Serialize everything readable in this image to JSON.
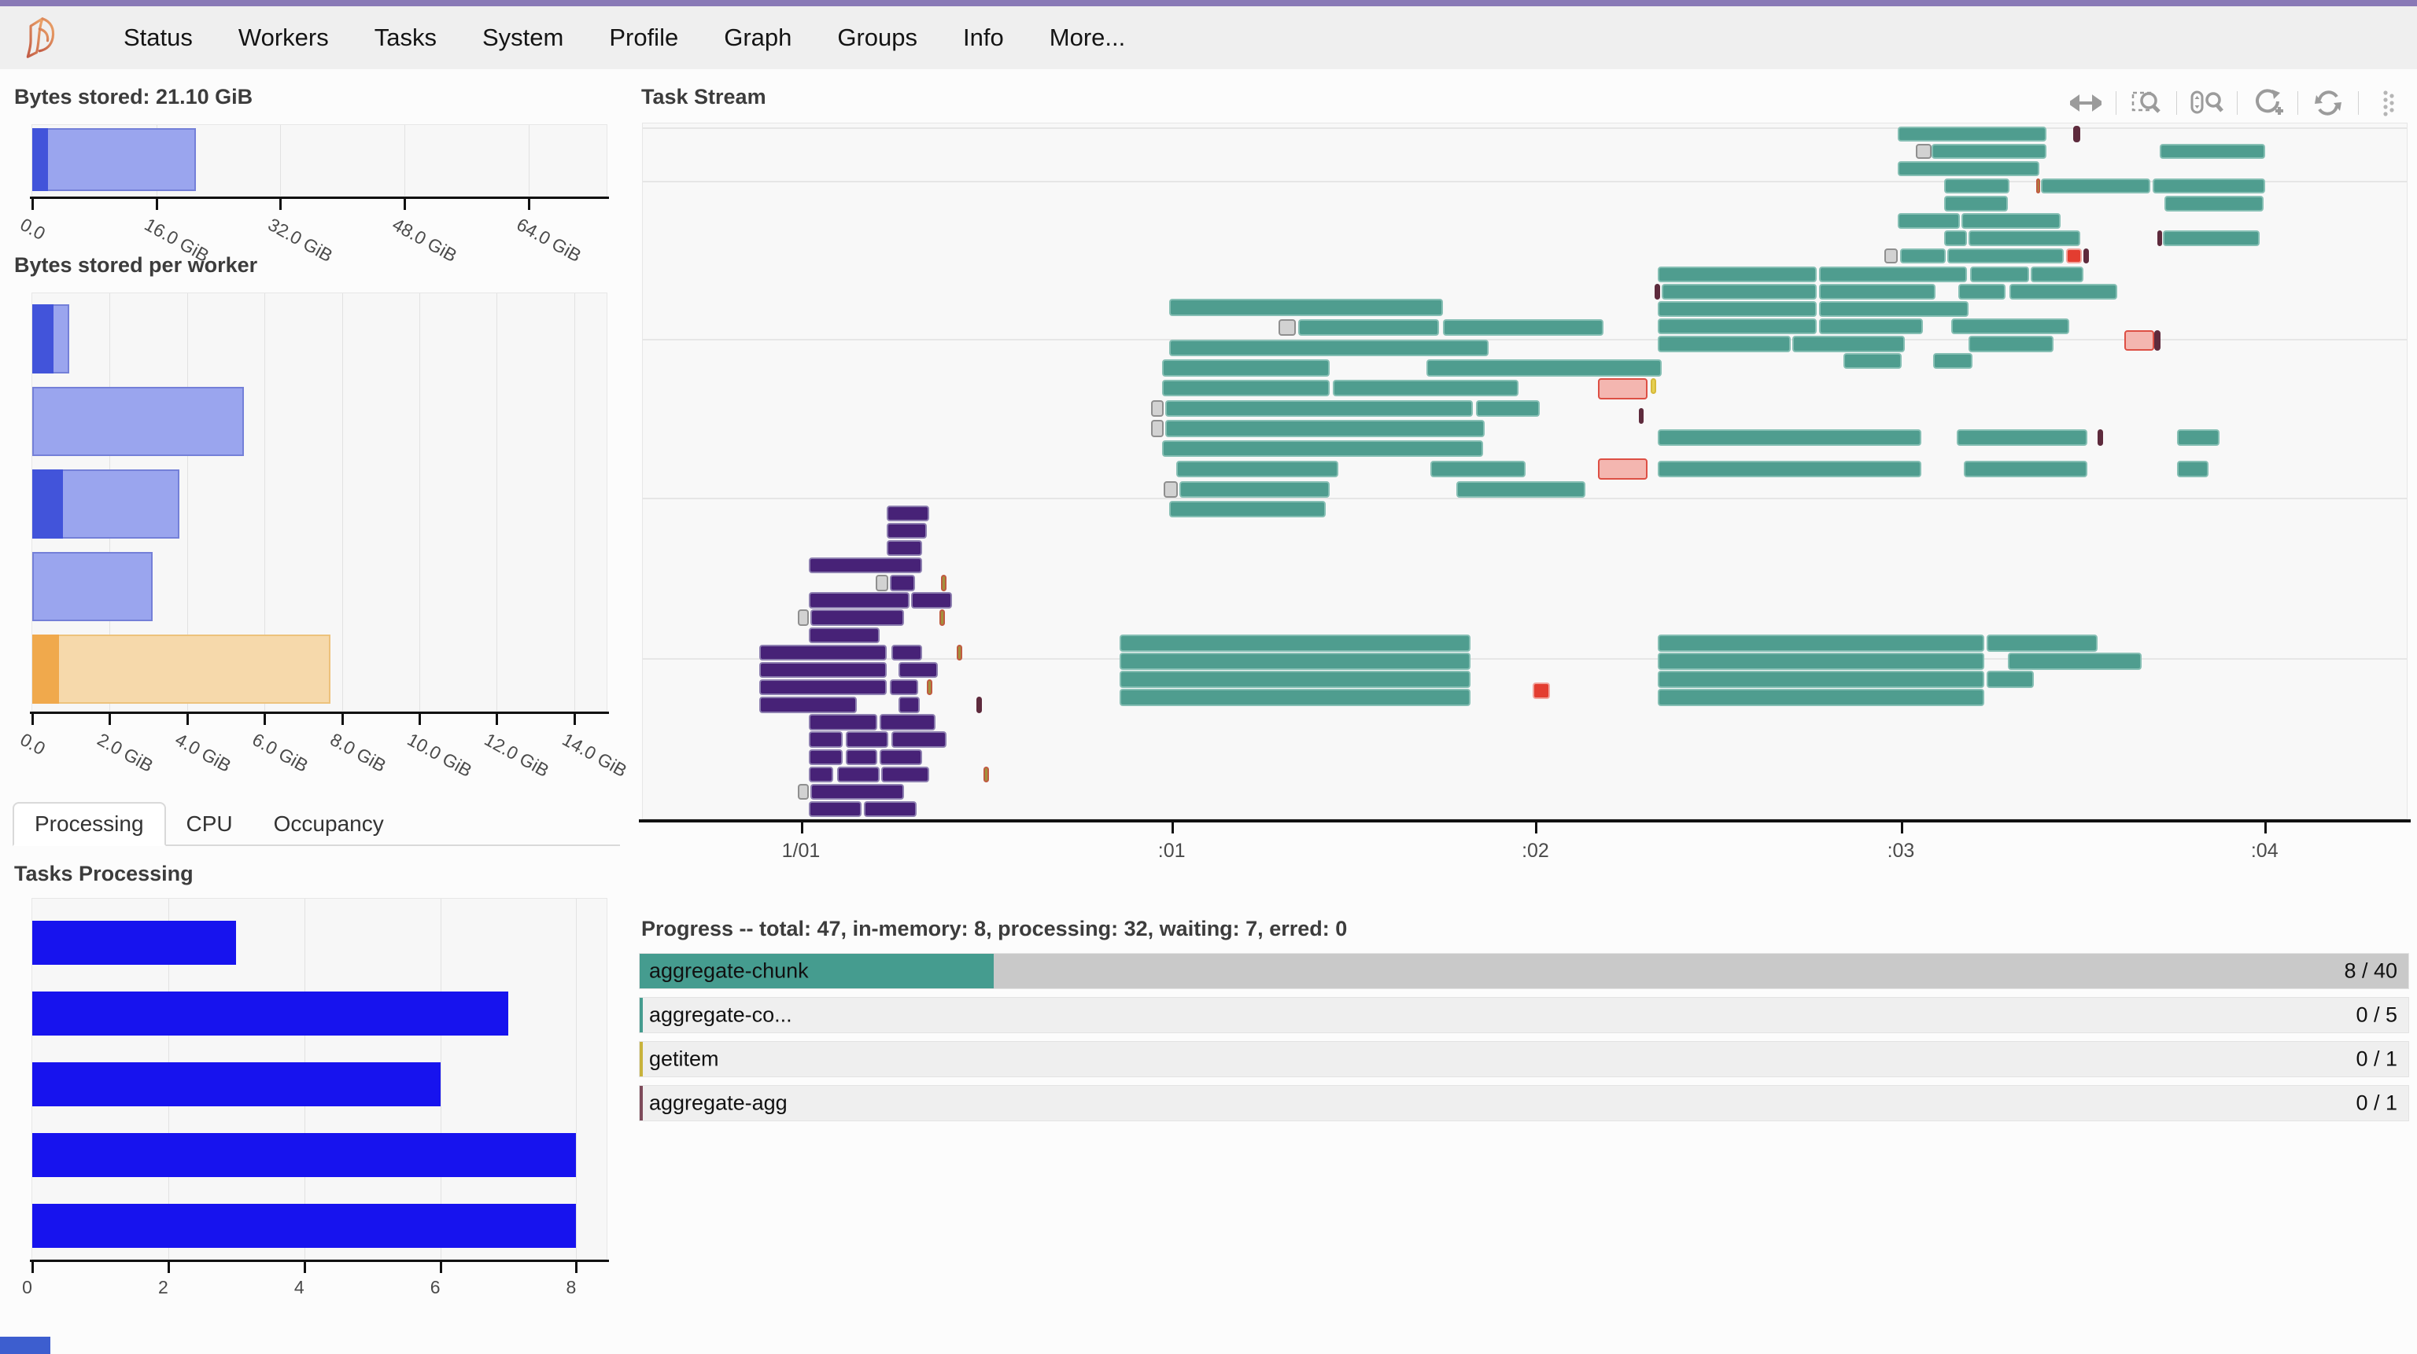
{
  "nav": {
    "logo": "dask-logo",
    "items": [
      "Status",
      "Workers",
      "Tasks",
      "System",
      "Profile",
      "Graph",
      "Groups",
      "Info",
      "More..."
    ]
  },
  "tabs": [
    "Processing",
    "CPU",
    "Occupancy"
  ],
  "toolbar": {
    "icons": [
      {
        "name": "pan-icon",
        "active": true
      },
      {
        "name": "box-zoom-icon",
        "active": false
      },
      {
        "name": "wheel-zoom-icon",
        "active": false
      },
      {
        "name": "zoom-in-icon",
        "active": true
      },
      {
        "name": "reset-icon",
        "active": false
      },
      {
        "name": "bokeh-logo-icon",
        "active": false
      }
    ]
  },
  "colors": {
    "accent_teal": "#459c8f",
    "blue_dark": "#4254da",
    "blue_light": "#9aa5ee",
    "blue_border": "#7480d8",
    "orange_dark": "#f0a94c",
    "orange_light": "#f6d9ab",
    "orange_border": "#edc27c",
    "task_blue": "#1713ee",
    "ts": {
      "t": {
        "f": "#4f9d8f",
        "b": "#86bfb4"
      },
      "p": {
        "f": "#472277",
        "b": "#8d7fb0"
      },
      "g": {
        "f": "#d2d2d2",
        "b": "#8f8f8f"
      },
      "r": {
        "f": "#e33d30",
        "b": "#f1a49d"
      },
      "k": {
        "f": "#f4b6b0",
        "b": "#dd4f44"
      },
      "o": {
        "f": "#a3913b",
        "b": "#c05a41"
      },
      "m": {
        "f": "#5e2b3d",
        "b": "#5e2b3d"
      },
      "y": {
        "f": "#e6d051",
        "b": "#d6b93c"
      }
    }
  },
  "chart_data": [
    {
      "type": "bar",
      "title": "Bytes stored: 21.10 GiB",
      "xlabel": "",
      "ylabel": "",
      "xlim": [
        0,
        74.3
      ],
      "ticks": [
        {
          "v": 0,
          "label": "0.0"
        },
        {
          "v": 16,
          "label": "16.0 GiB"
        },
        {
          "v": 32,
          "label": "32.0 GiB"
        },
        {
          "v": 48,
          "label": "48.0 GiB"
        },
        {
          "v": 64,
          "label": "64.0 GiB"
        }
      ],
      "total_gib": 21.1,
      "managed_gib": 2.0
    },
    {
      "type": "bar",
      "title": "Bytes stored per worker",
      "xlim": [
        0,
        14.88
      ],
      "ticks": [
        {
          "v": 0,
          "label": "0.0"
        },
        {
          "v": 2,
          "label": "2.0 GiB"
        },
        {
          "v": 4,
          "label": "4.0 GiB"
        },
        {
          "v": 6,
          "label": "6.0 GiB"
        },
        {
          "v": 8,
          "label": "8.0 GiB"
        },
        {
          "v": 10,
          "label": "10.0 GiB"
        },
        {
          "v": 12,
          "label": "12.0 GiB"
        },
        {
          "v": 14,
          "label": "14.0 GiB"
        }
      ],
      "workers": [
        {
          "dark": 0.55,
          "total": 0.96,
          "scheme": "blue"
        },
        {
          "dark": 0.0,
          "total": 5.47,
          "scheme": "blue"
        },
        {
          "dark": 0.8,
          "total": 3.8,
          "scheme": "blue"
        },
        {
          "dark": 0.0,
          "total": 3.1,
          "scheme": "blue"
        },
        {
          "dark": 0.7,
          "total": 7.7,
          "scheme": "orange"
        }
      ]
    },
    {
      "type": "bar",
      "title": "Tasks Processing",
      "xlim": [
        0,
        8.47
      ],
      "ticks": [
        {
          "v": 0,
          "label": "0"
        },
        {
          "v": 2,
          "label": "2"
        },
        {
          "v": 4,
          "label": "4"
        },
        {
          "v": 6,
          "label": "6"
        },
        {
          "v": 8,
          "label": "8"
        }
      ],
      "values": [
        3,
        7,
        6,
        8,
        8
      ]
    }
  ],
  "task_stream": {
    "title": "Task Stream",
    "ticks": [
      {
        "fx": 9.0,
        "label": "1/01"
      },
      {
        "fx": 30.0,
        "label": ":01"
      },
      {
        "fx": 50.6,
        "label": ":02"
      },
      {
        "fx": 71.3,
        "label": ":03"
      },
      {
        "fx": 91.9,
        "label": ":04"
      }
    ],
    "gridlines_fy": [
      0.6,
      8.2,
      30.9,
      53.7,
      76.7
    ],
    "bars": [
      [
        71.1,
        0.4,
        8.4,
        2.2,
        "t"
      ],
      [
        81.0,
        0.3,
        0.4,
        2.4,
        "m"
      ],
      [
        72.1,
        2.9,
        0.9,
        2.2,
        "g"
      ],
      [
        73.0,
        2.9,
        6.5,
        2.2,
        "t"
      ],
      [
        85.9,
        2.9,
        6.0,
        2.2,
        "t"
      ],
      [
        71.1,
        5.4,
        8.0,
        2.2,
        "t"
      ],
      [
        73.7,
        7.9,
        3.7,
        2.2,
        "t"
      ],
      [
        78.9,
        7.9,
        0.25,
        2.2,
        "o"
      ],
      [
        79.2,
        7.9,
        6.2,
        2.2,
        "t"
      ],
      [
        85.5,
        7.9,
        6.4,
        2.2,
        "t"
      ],
      [
        73.7,
        10.4,
        3.6,
        2.2,
        "t"
      ],
      [
        86.2,
        10.4,
        5.6,
        2.2,
        "t"
      ],
      [
        71.1,
        12.9,
        3.5,
        2.2,
        "t"
      ],
      [
        74.7,
        12.9,
        5.6,
        2.2,
        "t"
      ],
      [
        73.7,
        15.4,
        1.3,
        2.2,
        "t"
      ],
      [
        75.1,
        15.4,
        6.3,
        2.2,
        "t"
      ],
      [
        85.8,
        15.4,
        0.25,
        2.2,
        "m"
      ],
      [
        86.1,
        15.4,
        5.5,
        2.2,
        "t"
      ],
      [
        70.3,
        17.9,
        0.8,
        2.2,
        "g"
      ],
      [
        71.2,
        17.9,
        2.6,
        2.2,
        "t"
      ],
      [
        73.9,
        17.9,
        6.6,
        2.2,
        "t"
      ],
      [
        80.6,
        17.9,
        0.9,
        2.2,
        "r"
      ],
      [
        81.6,
        17.9,
        0.3,
        2.2,
        "m"
      ],
      [
        57.5,
        20.5,
        9.0,
        2.3,
        "t"
      ],
      [
        66.6,
        20.5,
        8.4,
        2.3,
        "t"
      ],
      [
        75.2,
        20.5,
        3.3,
        2.3,
        "t"
      ],
      [
        78.6,
        20.5,
        3.0,
        2.3,
        "t"
      ],
      [
        57.3,
        23.0,
        0.3,
        2.3,
        "m"
      ],
      [
        57.7,
        23.0,
        8.8,
        2.3,
        "t"
      ],
      [
        66.6,
        23.0,
        6.6,
        2.3,
        "t"
      ],
      [
        74.5,
        23.0,
        2.7,
        2.3,
        "t"
      ],
      [
        77.4,
        23.0,
        6.1,
        2.3,
        "t"
      ],
      [
        57.5,
        25.5,
        9.0,
        2.3,
        "t"
      ],
      [
        66.6,
        25.5,
        8.5,
        2.3,
        "t"
      ],
      [
        57.5,
        28.0,
        9.0,
        2.3,
        "t"
      ],
      [
        66.6,
        28.0,
        5.9,
        2.3,
        "t"
      ],
      [
        74.1,
        28.0,
        6.7,
        2.3,
        "t"
      ],
      [
        57.5,
        30.5,
        7.5,
        2.3,
        "t"
      ],
      [
        65.1,
        30.5,
        6.4,
        2.3,
        "t"
      ],
      [
        75.1,
        30.5,
        4.8,
        2.3,
        "t"
      ],
      [
        68.0,
        33.0,
        3.3,
        2.2,
        "t"
      ],
      [
        73.1,
        33.0,
        2.2,
        2.2,
        "t"
      ],
      [
        83.9,
        29.7,
        1.7,
        2.9,
        "k"
      ],
      [
        85.6,
        29.7,
        0.35,
        2.9,
        "m"
      ],
      [
        29.8,
        25.2,
        15.5,
        2.4,
        "t"
      ],
      [
        36.0,
        28.1,
        1.0,
        2.4,
        "g"
      ],
      [
        37.1,
        28.1,
        8.0,
        2.4,
        "t"
      ],
      [
        45.3,
        28.1,
        9.1,
        2.4,
        "t"
      ],
      [
        29.8,
        31.0,
        18.1,
        2.4,
        "t"
      ],
      [
        29.4,
        33.9,
        9.5,
        2.4,
        "t"
      ],
      [
        44.4,
        33.9,
        13.3,
        2.4,
        "t"
      ],
      [
        29.4,
        36.8,
        9.5,
        2.4,
        "t"
      ],
      [
        39.1,
        36.8,
        10.5,
        2.4,
        "t"
      ],
      [
        54.1,
        36.6,
        2.8,
        3.0,
        "k"
      ],
      [
        57.1,
        36.6,
        0.3,
        2.2,
        "y"
      ],
      [
        28.8,
        39.7,
        0.7,
        2.4,
        "g"
      ],
      [
        29.6,
        39.7,
        17.4,
        2.4,
        "t"
      ],
      [
        47.2,
        39.7,
        3.6,
        2.4,
        "t"
      ],
      [
        56.4,
        40.9,
        0.3,
        2.2,
        "m"
      ],
      [
        28.8,
        42.6,
        0.7,
        2.4,
        "g"
      ],
      [
        29.6,
        42.6,
        18.1,
        2.4,
        "t"
      ],
      [
        57.5,
        43.9,
        14.9,
        2.4,
        "t"
      ],
      [
        74.4,
        43.9,
        7.4,
        2.4,
        "t"
      ],
      [
        82.4,
        43.9,
        0.3,
        2.4,
        "m"
      ],
      [
        86.9,
        43.9,
        2.4,
        2.4,
        "t"
      ],
      [
        29.4,
        45.5,
        18.2,
        2.4,
        "t"
      ],
      [
        30.2,
        48.4,
        9.2,
        2.4,
        "t"
      ],
      [
        44.6,
        48.4,
        5.4,
        2.4,
        "t"
      ],
      [
        54.1,
        48.1,
        2.8,
        3.0,
        "k"
      ],
      [
        57.5,
        48.4,
        14.9,
        2.4,
        "t"
      ],
      [
        74.8,
        48.4,
        7.0,
        2.4,
        "t"
      ],
      [
        86.9,
        48.4,
        1.8,
        2.4,
        "t"
      ],
      [
        29.5,
        51.3,
        0.8,
        2.4,
        "g"
      ],
      [
        30.4,
        51.3,
        8.5,
        2.4,
        "t"
      ],
      [
        46.1,
        51.3,
        7.3,
        2.4,
        "t"
      ],
      [
        29.8,
        54.2,
        8.9,
        2.4,
        "t"
      ],
      [
        13.8,
        54.8,
        2.4,
        2.3,
        "p"
      ],
      [
        13.8,
        57.3,
        2.3,
        2.3,
        "p"
      ],
      [
        13.8,
        59.8,
        2.0,
        2.3,
        "p"
      ],
      [
        9.4,
        62.3,
        6.4,
        2.3,
        "p"
      ],
      [
        13.2,
        64.8,
        0.7,
        2.3,
        "g"
      ],
      [
        14.0,
        64.8,
        1.4,
        2.3,
        "p"
      ],
      [
        16.9,
        64.8,
        0.3,
        2.3,
        "o"
      ],
      [
        9.4,
        67.3,
        5.7,
        2.3,
        "p"
      ],
      [
        15.2,
        67.3,
        2.3,
        2.3,
        "p"
      ],
      [
        8.8,
        69.8,
        0.6,
        2.3,
        "g"
      ],
      [
        9.5,
        69.8,
        5.3,
        2.3,
        "p"
      ],
      [
        16.8,
        69.8,
        0.3,
        2.3,
        "o"
      ],
      [
        9.4,
        72.3,
        4.0,
        2.3,
        "p"
      ],
      [
        6.6,
        74.8,
        7.2,
        2.3,
        "p"
      ],
      [
        14.1,
        74.8,
        1.7,
        2.3,
        "p"
      ],
      [
        17.8,
        74.8,
        0.3,
        2.3,
        "o"
      ],
      [
        6.6,
        77.3,
        7.2,
        2.3,
        "p"
      ],
      [
        14.5,
        77.3,
        2.2,
        2.3,
        "p"
      ],
      [
        6.6,
        79.8,
        7.2,
        2.3,
        "p"
      ],
      [
        14.0,
        79.8,
        1.6,
        2.3,
        "p"
      ],
      [
        16.1,
        79.8,
        0.3,
        2.3,
        "o"
      ],
      [
        6.6,
        82.3,
        5.5,
        2.3,
        "p"
      ],
      [
        14.5,
        82.3,
        1.2,
        2.3,
        "p"
      ],
      [
        18.9,
        82.3,
        0.3,
        2.3,
        "m"
      ],
      [
        9.4,
        84.8,
        3.9,
        2.3,
        "p"
      ],
      [
        13.4,
        84.8,
        3.2,
        2.3,
        "p"
      ],
      [
        9.4,
        87.3,
        1.9,
        2.3,
        "p"
      ],
      [
        11.5,
        87.3,
        2.4,
        2.3,
        "p"
      ],
      [
        14.1,
        87.3,
        3.1,
        2.3,
        "p"
      ],
      [
        9.4,
        89.8,
        1.9,
        2.3,
        "p"
      ],
      [
        11.5,
        89.8,
        1.8,
        2.3,
        "p"
      ],
      [
        13.4,
        89.8,
        2.4,
        2.3,
        "p"
      ],
      [
        9.4,
        92.3,
        1.4,
        2.3,
        "p"
      ],
      [
        11.0,
        92.3,
        2.4,
        2.3,
        "p"
      ],
      [
        13.5,
        92.3,
        2.7,
        2.3,
        "p"
      ],
      [
        19.3,
        92.3,
        0.3,
        2.3,
        "o"
      ],
      [
        8.8,
        94.8,
        0.6,
        2.3,
        "g"
      ],
      [
        9.5,
        94.8,
        5.3,
        2.3,
        "p"
      ],
      [
        9.4,
        97.3,
        3.0,
        2.3,
        "p"
      ],
      [
        12.5,
        97.3,
        3.0,
        2.3,
        "p"
      ],
      [
        27.0,
        73.4,
        19.9,
        2.4,
        "t"
      ],
      [
        57.5,
        73.4,
        18.5,
        2.4,
        "t"
      ],
      [
        76.1,
        73.4,
        6.3,
        2.4,
        "t"
      ],
      [
        27.0,
        76.0,
        19.9,
        2.4,
        "t"
      ],
      [
        57.5,
        76.0,
        18.5,
        2.4,
        "t"
      ],
      [
        77.3,
        76.0,
        7.6,
        2.4,
        "t"
      ],
      [
        27.0,
        78.6,
        19.9,
        2.4,
        "t"
      ],
      [
        57.5,
        78.6,
        18.5,
        2.4,
        "t"
      ],
      [
        76.1,
        78.6,
        2.7,
        2.4,
        "t"
      ],
      [
        27.0,
        81.2,
        19.9,
        2.4,
        "t"
      ],
      [
        57.5,
        81.2,
        18.5,
        2.4,
        "t"
      ],
      [
        50.4,
        80.2,
        1.0,
        2.4,
        "r"
      ]
    ]
  },
  "progress": {
    "title": "Progress -- total: 47, in-memory: 8, processing: 32, waiting: 7, erred: 0",
    "rows": [
      {
        "label": "aggregate-chunk",
        "count": "8 / 40",
        "fill_pct": 20,
        "track": "#c9c9c9",
        "fill": "#459c8f",
        "accent": ""
      },
      {
        "label": "aggregate-co...",
        "count": "0 / 5",
        "fill_pct": 0,
        "track": "#efefef",
        "fill": "",
        "accent": "#459c8f"
      },
      {
        "label": "getitem",
        "count": "0 / 1",
        "fill_pct": 0,
        "track": "#efefef",
        "fill": "",
        "accent": "#c8b33c"
      },
      {
        "label": "aggregate-agg",
        "count": "0 / 1",
        "fill_pct": 0,
        "track": "#efefef",
        "fill": "",
        "accent": "#7d4a5a"
      }
    ]
  }
}
